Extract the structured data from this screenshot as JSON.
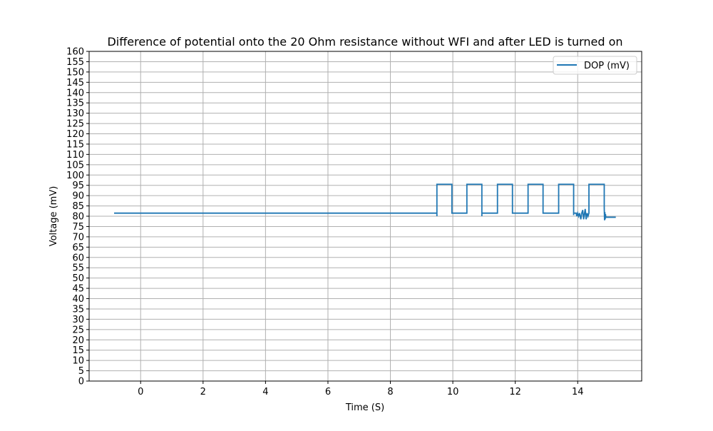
{
  "chart_data": {
    "type": "line",
    "title": "Difference of potential onto the 20 Ohm resistance without WFI and after LED is turned on",
    "xlabel": "Time (S)",
    "ylabel": "Voltage (mV)",
    "xlim": [
      -1.65,
      16.05
    ],
    "ylim": [
      0,
      160
    ],
    "xticks": [
      0,
      2,
      4,
      6,
      8,
      10,
      12,
      14
    ],
    "yticks": [
      0,
      5,
      10,
      15,
      20,
      25,
      30,
      35,
      40,
      45,
      50,
      55,
      60,
      65,
      70,
      75,
      80,
      85,
      90,
      95,
      100,
      105,
      110,
      115,
      120,
      125,
      130,
      135,
      140,
      145,
      150,
      155,
      160
    ],
    "grid": true,
    "legend_position": "top-right",
    "colors": {
      "series": "#1f77b4",
      "grid": "#b0b0b0"
    },
    "series": [
      {
        "name": "DOP (mV)",
        "points": [
          [
            -0.85,
            81.5
          ],
          [
            9.49,
            81.5
          ],
          [
            9.49,
            80.0
          ],
          [
            9.49,
            95.5
          ],
          [
            9.97,
            95.5
          ],
          [
            9.97,
            81.5
          ],
          [
            10.45,
            81.5
          ],
          [
            10.45,
            95.5
          ],
          [
            10.93,
            95.5
          ],
          [
            10.93,
            80.0
          ],
          [
            10.93,
            81.5
          ],
          [
            11.43,
            81.5
          ],
          [
            11.43,
            95.5
          ],
          [
            11.91,
            95.5
          ],
          [
            11.91,
            81.5
          ],
          [
            12.41,
            81.5
          ],
          [
            12.41,
            95.5
          ],
          [
            12.89,
            95.5
          ],
          [
            12.89,
            81.5
          ],
          [
            13.39,
            81.5
          ],
          [
            13.39,
            95.5
          ],
          [
            13.87,
            95.5
          ],
          [
            13.87,
            80.5
          ],
          [
            13.87,
            81.5
          ],
          [
            13.95,
            81.5
          ],
          [
            13.97,
            80.0
          ],
          [
            14.0,
            81.5
          ],
          [
            14.03,
            80.0
          ],
          [
            14.06,
            81.5
          ],
          [
            14.1,
            78.5
          ],
          [
            14.13,
            81.5
          ],
          [
            14.16,
            83.0
          ],
          [
            14.19,
            78.5
          ],
          [
            14.22,
            81.5
          ],
          [
            14.24,
            83.5
          ],
          [
            14.27,
            78.5
          ],
          [
            14.3,
            81.5
          ],
          [
            14.33,
            80.0
          ],
          [
            14.36,
            81.5
          ],
          [
            14.36,
            95.5
          ],
          [
            14.85,
            95.5
          ],
          [
            14.85,
            84.0
          ],
          [
            14.86,
            78.0
          ],
          [
            14.87,
            82.0
          ],
          [
            14.88,
            78.5
          ],
          [
            14.89,
            81.0
          ],
          [
            14.9,
            79.5
          ],
          [
            15.22,
            79.5
          ]
        ]
      }
    ]
  }
}
